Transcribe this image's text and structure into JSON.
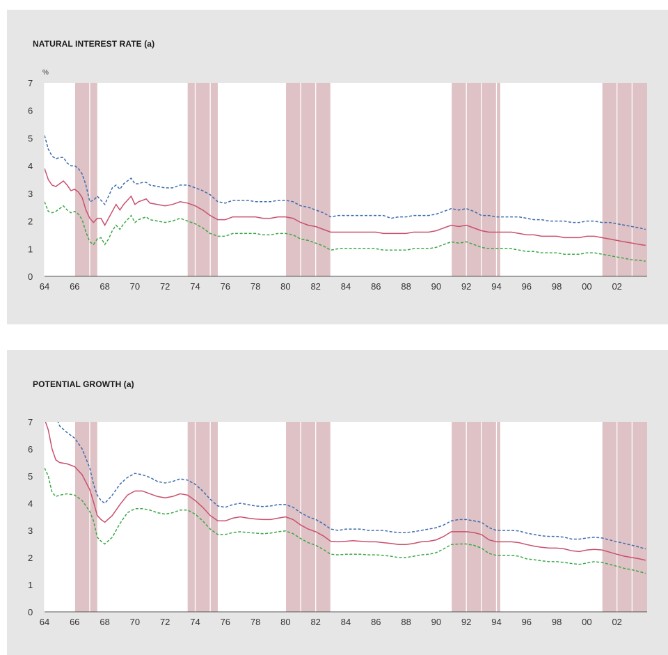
{
  "colors": {
    "panel_bg": "#e6e6e6",
    "plot_bg": "#ffffff",
    "recession": "#d9b7bb",
    "central": "#c8506e",
    "upper": "#3c6cae",
    "lower": "#3aa846",
    "text": "#333333"
  },
  "chart_data": [
    {
      "type": "line",
      "title": "NATURAL INTEREST RATE (a)",
      "ylabel": "%",
      "xlabel": "",
      "xlim": [
        1964,
        2004
      ],
      "ylim": [
        0,
        7
      ],
      "yticks": [
        0,
        1,
        2,
        3,
        4,
        5,
        6,
        7
      ],
      "xticks": [
        1964,
        1966,
        1968,
        1970,
        1972,
        1974,
        1976,
        1978,
        1980,
        1982,
        1984,
        1986,
        1988,
        1990,
        1992,
        1994,
        1996,
        1998,
        2000,
        2002
      ],
      "xtick_labels": [
        "64",
        "66",
        "68",
        "70",
        "72",
        "74",
        "76",
        "78",
        "80",
        "82",
        "84",
        "86",
        "88",
        "90",
        "92",
        "94",
        "96",
        "98",
        "00",
        "02"
      ],
      "grid": "vertical",
      "recessions": [
        [
          1966.0,
          1967.5
        ],
        [
          1973.5,
          1975.5
        ],
        [
          1980.0,
          1983.0
        ],
        [
          1991.0,
          1994.25
        ],
        [
          2001.0,
          2004.0
        ]
      ],
      "x": [
        1964.0,
        1964.25,
        1964.5,
        1964.75,
        1965.0,
        1965.25,
        1965.5,
        1965.75,
        1966.0,
        1966.25,
        1966.5,
        1966.75,
        1967.0,
        1967.25,
        1967.5,
        1967.75,
        1968.0,
        1968.25,
        1968.5,
        1968.75,
        1969.0,
        1969.25,
        1969.5,
        1969.75,
        1970.0,
        1970.25,
        1970.5,
        1970.75,
        1971.0,
        1971.5,
        1972.0,
        1972.5,
        1973.0,
        1973.5,
        1974.0,
        1974.5,
        1975.0,
        1975.5,
        1976.0,
        1976.5,
        1977.0,
        1977.5,
        1978.0,
        1978.5,
        1979.0,
        1979.5,
        1980.0,
        1980.5,
        1981.0,
        1981.5,
        1982.0,
        1982.5,
        1983.0,
        1983.5,
        1984.0,
        1984.5,
        1985.0,
        1985.5,
        1986.0,
        1986.5,
        1987.0,
        1987.5,
        1988.0,
        1988.5,
        1989.0,
        1989.5,
        1990.0,
        1990.5,
        1991.0,
        1991.5,
        1992.0,
        1992.5,
        1993.0,
        1993.5,
        1994.0,
        1994.5,
        1995.0,
        1995.5,
        1996.0,
        1996.5,
        1997.0,
        1997.5,
        1998.0,
        1998.5,
        1999.0,
        1999.5,
        2000.0,
        2000.5,
        2001.0,
        2001.5,
        2002.0,
        2002.5,
        2003.0,
        2003.5,
        2003.9
      ],
      "series": [
        {
          "role": "upper",
          "values": [
            5.1,
            4.6,
            4.35,
            4.25,
            4.3,
            4.3,
            4.1,
            4.0,
            4.0,
            3.9,
            3.7,
            3.3,
            2.7,
            2.75,
            2.9,
            2.75,
            2.6,
            2.9,
            3.2,
            3.3,
            3.15,
            3.35,
            3.45,
            3.55,
            3.35,
            3.35,
            3.4,
            3.4,
            3.3,
            3.25,
            3.2,
            3.2,
            3.3,
            3.3,
            3.2,
            3.1,
            2.95,
            2.7,
            2.65,
            2.75,
            2.75,
            2.75,
            2.7,
            2.7,
            2.7,
            2.75,
            2.75,
            2.7,
            2.55,
            2.5,
            2.4,
            2.3,
            2.15,
            2.2,
            2.2,
            2.2,
            2.2,
            2.2,
            2.2,
            2.2,
            2.1,
            2.15,
            2.15,
            2.2,
            2.2,
            2.2,
            2.25,
            2.35,
            2.45,
            2.4,
            2.45,
            2.35,
            2.2,
            2.2,
            2.15,
            2.15,
            2.15,
            2.15,
            2.1,
            2.05,
            2.05,
            2.0,
            2.0,
            2.0,
            1.95,
            1.95,
            2.0,
            2.0,
            1.95,
            1.95,
            1.9,
            1.85,
            1.8,
            1.75,
            1.7
          ]
        },
        {
          "role": "central",
          "values": [
            3.9,
            3.5,
            3.3,
            3.25,
            3.35,
            3.45,
            3.3,
            3.1,
            3.15,
            3.05,
            2.85,
            2.4,
            2.1,
            1.95,
            2.1,
            2.1,
            1.85,
            2.1,
            2.35,
            2.6,
            2.4,
            2.6,
            2.75,
            2.9,
            2.6,
            2.7,
            2.75,
            2.8,
            2.65,
            2.6,
            2.55,
            2.6,
            2.7,
            2.65,
            2.55,
            2.4,
            2.2,
            2.05,
            2.05,
            2.15,
            2.15,
            2.15,
            2.15,
            2.1,
            2.1,
            2.15,
            2.15,
            2.1,
            1.95,
            1.85,
            1.8,
            1.7,
            1.6,
            1.6,
            1.6,
            1.6,
            1.6,
            1.6,
            1.6,
            1.55,
            1.55,
            1.55,
            1.55,
            1.6,
            1.6,
            1.6,
            1.65,
            1.75,
            1.85,
            1.8,
            1.85,
            1.75,
            1.65,
            1.6,
            1.6,
            1.6,
            1.6,
            1.55,
            1.5,
            1.5,
            1.45,
            1.45,
            1.45,
            1.4,
            1.4,
            1.4,
            1.45,
            1.45,
            1.4,
            1.35,
            1.3,
            1.25,
            1.2,
            1.15,
            1.12
          ]
        },
        {
          "role": "lower",
          "values": [
            2.7,
            2.35,
            2.3,
            2.35,
            2.45,
            2.55,
            2.4,
            2.3,
            2.35,
            2.25,
            2.05,
            1.6,
            1.25,
            1.15,
            1.35,
            1.4,
            1.15,
            1.35,
            1.65,
            1.85,
            1.7,
            1.9,
            2.05,
            2.2,
            1.95,
            2.05,
            2.1,
            2.15,
            2.05,
            2.0,
            1.95,
            2.0,
            2.1,
            2.0,
            1.9,
            1.75,
            1.55,
            1.45,
            1.45,
            1.55,
            1.55,
            1.55,
            1.55,
            1.5,
            1.5,
            1.55,
            1.55,
            1.5,
            1.35,
            1.3,
            1.2,
            1.1,
            0.95,
            1.0,
            1.0,
            1.0,
            1.0,
            1.0,
            1.0,
            0.95,
            0.95,
            0.95,
            0.95,
            1.0,
            1.0,
            1.0,
            1.05,
            1.15,
            1.25,
            1.2,
            1.25,
            1.15,
            1.05,
            1.0,
            1.0,
            1.0,
            1.0,
            0.95,
            0.9,
            0.9,
            0.85,
            0.85,
            0.85,
            0.8,
            0.8,
            0.8,
            0.85,
            0.85,
            0.8,
            0.75,
            0.7,
            0.65,
            0.6,
            0.58,
            0.55
          ]
        }
      ]
    },
    {
      "type": "line",
      "title": "POTENTIAL GROWTH (a)",
      "ylabel": "",
      "xlabel": "",
      "xlim": [
        1964,
        2004
      ],
      "ylim": [
        0,
        7
      ],
      "yticks": [
        0,
        1,
        2,
        3,
        4,
        5,
        6,
        7
      ],
      "xticks": [
        1964,
        1966,
        1968,
        1970,
        1972,
        1974,
        1976,
        1978,
        1980,
        1982,
        1984,
        1986,
        1988,
        1990,
        1992,
        1994,
        1996,
        1998,
        2000,
        2002
      ],
      "xtick_labels": [
        "64",
        "66",
        "68",
        "70",
        "72",
        "74",
        "76",
        "78",
        "80",
        "82",
        "84",
        "86",
        "88",
        "90",
        "92",
        "94",
        "96",
        "98",
        "00",
        "02"
      ],
      "grid": "vertical",
      "recessions": [
        [
          1966.0,
          1967.5
        ],
        [
          1973.5,
          1975.5
        ],
        [
          1980.0,
          1983.0
        ],
        [
          1991.0,
          1994.25
        ],
        [
          2001.0,
          2004.0
        ]
      ],
      "x": [
        1964.0,
        1964.25,
        1964.5,
        1964.75,
        1965.0,
        1965.5,
        1966.0,
        1966.5,
        1967.0,
        1967.25,
        1967.5,
        1967.75,
        1968.0,
        1968.5,
        1969.0,
        1969.5,
        1970.0,
        1970.5,
        1971.0,
        1971.5,
        1972.0,
        1972.5,
        1973.0,
        1973.5,
        1974.0,
        1974.5,
        1975.0,
        1975.5,
        1976.0,
        1976.5,
        1977.0,
        1977.5,
        1978.0,
        1978.5,
        1979.0,
        1979.5,
        1980.0,
        1980.5,
        1981.0,
        1981.5,
        1982.0,
        1982.5,
        1983.0,
        1983.5,
        1984.0,
        1984.5,
        1985.0,
        1985.5,
        1986.0,
        1986.5,
        1987.0,
        1987.5,
        1988.0,
        1988.5,
        1989.0,
        1989.5,
        1990.0,
        1990.5,
        1991.0,
        1991.5,
        1992.0,
        1992.5,
        1993.0,
        1993.5,
        1994.0,
        1994.5,
        1995.0,
        1995.5,
        1996.0,
        1996.5,
        1997.0,
        1997.5,
        1998.0,
        1998.5,
        1999.0,
        1999.5,
        2000.0,
        2000.5,
        2001.0,
        2001.5,
        2002.0,
        2002.5,
        2003.0,
        2003.5,
        2003.9
      ],
      "series": [
        {
          "role": "upper",
          "values": [
            null,
            null,
            null,
            7.2,
            6.85,
            6.6,
            6.4,
            6.0,
            5.3,
            4.7,
            4.3,
            4.1,
            4.0,
            4.3,
            4.7,
            4.95,
            5.1,
            5.05,
            4.95,
            4.8,
            4.75,
            4.8,
            4.9,
            4.85,
            4.7,
            4.45,
            4.15,
            3.9,
            3.85,
            3.95,
            4.0,
            3.95,
            3.9,
            3.88,
            3.9,
            3.95,
            3.95,
            3.85,
            3.65,
            3.5,
            3.4,
            3.25,
            3.05,
            3.0,
            3.05,
            3.05,
            3.05,
            3.0,
            3.0,
            3.0,
            2.95,
            2.92,
            2.92,
            2.95,
            3.0,
            3.05,
            3.1,
            3.2,
            3.35,
            3.4,
            3.4,
            3.35,
            3.3,
            3.1,
            3.0,
            3.0,
            3.0,
            2.98,
            2.9,
            2.85,
            2.8,
            2.78,
            2.78,
            2.75,
            2.68,
            2.68,
            2.72,
            2.75,
            2.72,
            2.65,
            2.58,
            2.52,
            2.45,
            2.38,
            2.32
          ]
        },
        {
          "role": "central",
          "values": [
            7.1,
            6.7,
            6.0,
            5.6,
            5.5,
            5.45,
            5.35,
            5.05,
            4.5,
            4.05,
            3.55,
            3.4,
            3.3,
            3.55,
            3.95,
            4.3,
            4.45,
            4.45,
            4.35,
            4.25,
            4.2,
            4.25,
            4.35,
            4.3,
            4.1,
            3.85,
            3.55,
            3.35,
            3.35,
            3.45,
            3.5,
            3.45,
            3.42,
            3.4,
            3.4,
            3.45,
            3.5,
            3.4,
            3.2,
            3.05,
            2.95,
            2.8,
            2.6,
            2.58,
            2.6,
            2.62,
            2.6,
            2.58,
            2.58,
            2.55,
            2.52,
            2.48,
            2.48,
            2.52,
            2.58,
            2.6,
            2.65,
            2.78,
            2.95,
            2.95,
            2.95,
            2.92,
            2.85,
            2.65,
            2.58,
            2.58,
            2.58,
            2.55,
            2.48,
            2.42,
            2.38,
            2.35,
            2.35,
            2.32,
            2.25,
            2.22,
            2.28,
            2.3,
            2.28,
            2.2,
            2.12,
            2.05,
            2.0,
            1.95,
            1.9
          ]
        },
        {
          "role": "lower",
          "values": [
            5.3,
            5.0,
            4.4,
            4.25,
            4.3,
            4.35,
            4.3,
            4.1,
            3.7,
            3.35,
            2.75,
            2.6,
            2.5,
            2.75,
            3.25,
            3.65,
            3.8,
            3.8,
            3.75,
            3.65,
            3.6,
            3.65,
            3.75,
            3.75,
            3.6,
            3.35,
            3.05,
            2.85,
            2.85,
            2.92,
            2.95,
            2.92,
            2.9,
            2.88,
            2.9,
            2.95,
            2.98,
            2.88,
            2.7,
            2.55,
            2.45,
            2.3,
            2.12,
            2.1,
            2.12,
            2.12,
            2.12,
            2.1,
            2.1,
            2.08,
            2.05,
            2.0,
            2.0,
            2.05,
            2.1,
            2.12,
            2.18,
            2.32,
            2.48,
            2.5,
            2.5,
            2.45,
            2.35,
            2.15,
            2.08,
            2.08,
            2.08,
            2.05,
            1.95,
            1.92,
            1.88,
            1.85,
            1.85,
            1.82,
            1.78,
            1.75,
            1.8,
            1.85,
            1.82,
            1.75,
            1.68,
            1.6,
            1.55,
            1.48,
            1.42
          ]
        }
      ]
    }
  ]
}
